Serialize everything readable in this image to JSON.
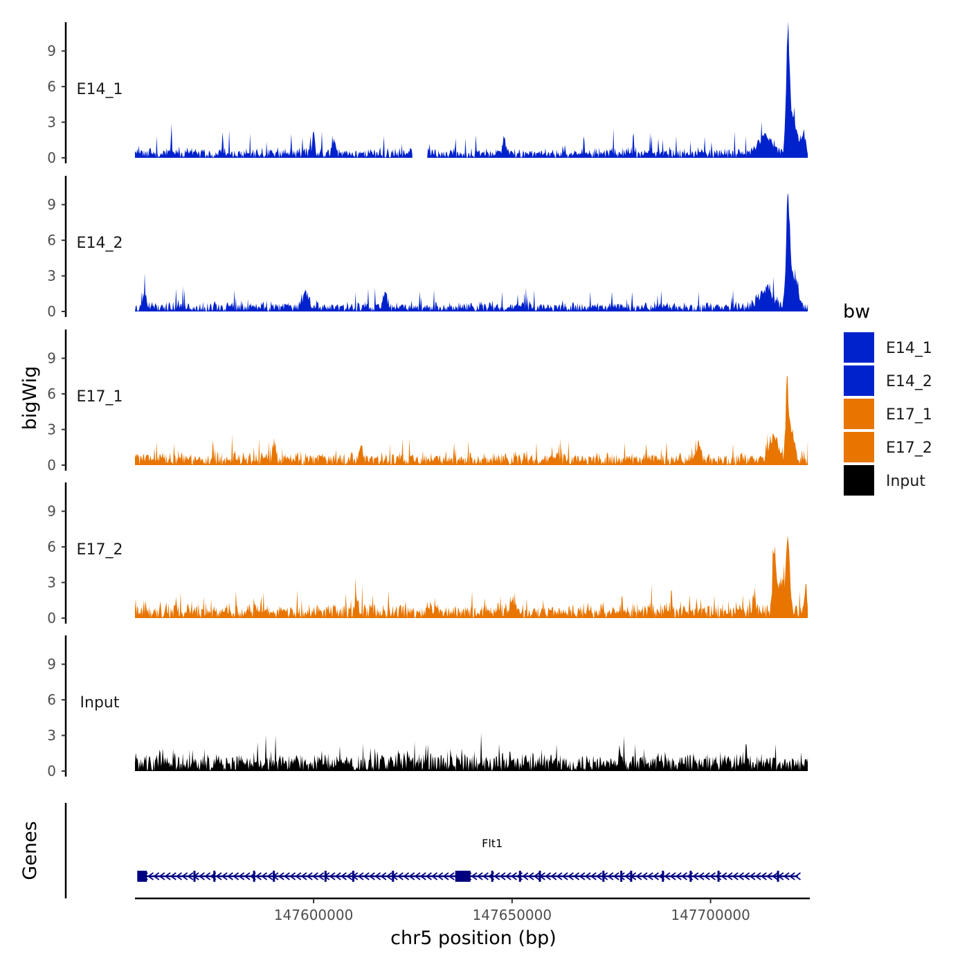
{
  "chart_data": {
    "type": "area",
    "subtype": "genome-browser-coverage-tracks",
    "ylabel": "bigWig",
    "xlabel": "chr5 position (bp)",
    "xlim": [
      147555000,
      147725000
    ],
    "x_ticks": [
      147600000,
      147650000,
      147700000
    ],
    "x_tick_labels": [
      "147600000",
      "147650000",
      "147700000"
    ],
    "ylim": [
      0,
      11.5
    ],
    "y_ticks": [
      0,
      3,
      6,
      9
    ],
    "y_tick_labels": [
      "0",
      "3",
      "6",
      "9"
    ],
    "series": [
      {
        "name": "E14_1",
        "color": "#0022CC",
        "baseline": 0.6,
        "noise": 0.5,
        "spikeProb": 0.04,
        "spikeMax": 1.5,
        "peaks": [
          {
            "pos": 147600000,
            "height": 1.8,
            "width": 500
          },
          {
            "pos": 147605000,
            "height": 1.2,
            "width": 600
          },
          {
            "pos": 147648000,
            "height": 1.4,
            "width": 600
          },
          {
            "pos": 147714000,
            "height": 1.8,
            "width": 2500
          },
          {
            "pos": 147719500,
            "height": 10.7,
            "width": 650
          },
          {
            "pos": 147721000,
            "height": 3.0,
            "width": 1300
          },
          {
            "pos": 147723500,
            "height": 1.6,
            "width": 800
          }
        ],
        "gaps": [
          [
            147625000,
            147628500
          ]
        ]
      },
      {
        "name": "E14_2",
        "color": "#0022CC",
        "baseline": 0.6,
        "noise": 0.5,
        "spikeProb": 0.05,
        "spikeMax": 1.3,
        "peaks": [
          {
            "pos": 147557500,
            "height": 1.6,
            "width": 500
          },
          {
            "pos": 147598000,
            "height": 1.4,
            "width": 1200
          },
          {
            "pos": 147618000,
            "height": 1.8,
            "width": 600
          },
          {
            "pos": 147714000,
            "height": 1.8,
            "width": 2500
          },
          {
            "pos": 147719500,
            "height": 9.3,
            "width": 650
          },
          {
            "pos": 147721000,
            "height": 3.2,
            "width": 1400
          }
        ],
        "gaps": []
      },
      {
        "name": "E17_1",
        "color": "#E87500",
        "baseline": 0.8,
        "noise": 0.7,
        "spikeProb": 0.05,
        "spikeMax": 1.4,
        "peaks": [
          {
            "pos": 147590000,
            "height": 1.8,
            "width": 500
          },
          {
            "pos": 147612000,
            "height": 1.6,
            "width": 500
          },
          {
            "pos": 147697000,
            "height": 1.4,
            "width": 600
          },
          {
            "pos": 147716000,
            "height": 2.2,
            "width": 1600
          },
          {
            "pos": 147719300,
            "height": 7.2,
            "width": 500
          },
          {
            "pos": 147720500,
            "height": 2.6,
            "width": 1000
          }
        ],
        "gaps": []
      },
      {
        "name": "E17_2",
        "color": "#E87500",
        "baseline": 0.9,
        "noise": 0.8,
        "spikeProb": 0.05,
        "spikeMax": 1.5,
        "peaks": [
          {
            "pos": 147611000,
            "height": 1.6,
            "width": 500
          },
          {
            "pos": 147650000,
            "height": 1.4,
            "width": 500
          },
          {
            "pos": 147711000,
            "height": 1.6,
            "width": 600
          },
          {
            "pos": 147716000,
            "height": 6.2,
            "width": 500
          },
          {
            "pos": 147719500,
            "height": 6.2,
            "width": 600
          },
          {
            "pos": 147717800,
            "height": 3.0,
            "width": 1500
          },
          {
            "pos": 147724000,
            "height": 3.0,
            "width": 400
          }
        ],
        "gaps": []
      },
      {
        "name": "Input",
        "color": "#000000",
        "baseline": 1.1,
        "noise": 1.0,
        "spikeProb": 0.05,
        "spikeMax": 1.6,
        "peaks": [
          {
            "pos": 147677000,
            "height": 1.8,
            "width": 300
          },
          {
            "pos": 147709000,
            "height": 1.8,
            "width": 300
          }
        ],
        "gaps": []
      }
    ],
    "genes": {
      "label": "Genes",
      "name": "Flt1",
      "color": "#000080",
      "strand": "-",
      "start": 147556000,
      "end": 147722000,
      "label_pos": 147645000,
      "exons": [
        147556800,
        147570000,
        147575000,
        147585000,
        147590000,
        147603000,
        147610000,
        147620000,
        147637600,
        147645000,
        147652000,
        147657000,
        147673000,
        147677500,
        147680000,
        147688000,
        147695000,
        147702000,
        147717000
      ]
    },
    "legend": {
      "title": "bw",
      "position": "right",
      "items": [
        {
          "label": "E14_1",
          "color": "#0022CC"
        },
        {
          "label": "E14_2",
          "color": "#0022CC"
        },
        {
          "label": "E17_1",
          "color": "#E87500"
        },
        {
          "label": "E17_2",
          "color": "#E87500"
        },
        {
          "label": "Input",
          "color": "#000000"
        }
      ]
    }
  }
}
